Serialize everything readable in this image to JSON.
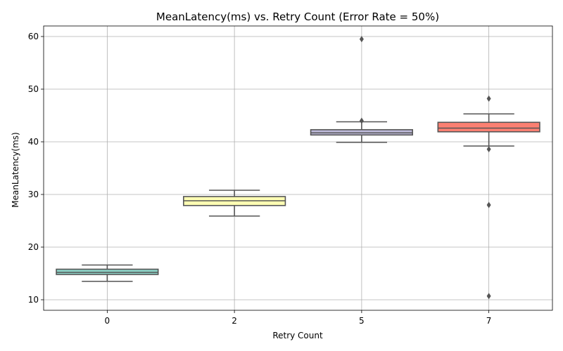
{
  "chart_data": {
    "type": "box",
    "title": "MeanLatency(ms) vs. Retry Count (Error Rate = 50%)",
    "xlabel": "Retry Count",
    "ylabel": "MeanLatency(ms)",
    "ylim": [
      8,
      62
    ],
    "yticks": [
      10,
      20,
      30,
      40,
      50,
      60
    ],
    "grid": true,
    "categories": [
      "0",
      "2",
      "5",
      "7"
    ],
    "boxes": [
      {
        "category": "0",
        "whisker_low": 13.5,
        "q1": 14.8,
        "median": 15.2,
        "q3": 15.8,
        "whisker_high": 16.6,
        "outliers": [],
        "color": "#8dd3c7"
      },
      {
        "category": "2",
        "whisker_low": 25.9,
        "q1": 27.9,
        "median": 28.8,
        "q3": 29.6,
        "whisker_high": 30.8,
        "outliers": [],
        "color": "#ffffb3"
      },
      {
        "category": "5",
        "whisker_low": 39.9,
        "q1": 41.3,
        "median": 41.7,
        "q3": 42.3,
        "whisker_high": 43.8,
        "outliers": [
          44.0,
          59.5
        ],
        "color": "#bebada"
      },
      {
        "category": "7",
        "whisker_low": 39.2,
        "q1": 41.9,
        "median": 42.6,
        "q3": 43.7,
        "whisker_high": 45.3,
        "outliers": [
          48.2,
          38.6,
          28.0,
          10.7
        ],
        "color": "#fb8072"
      }
    ]
  }
}
